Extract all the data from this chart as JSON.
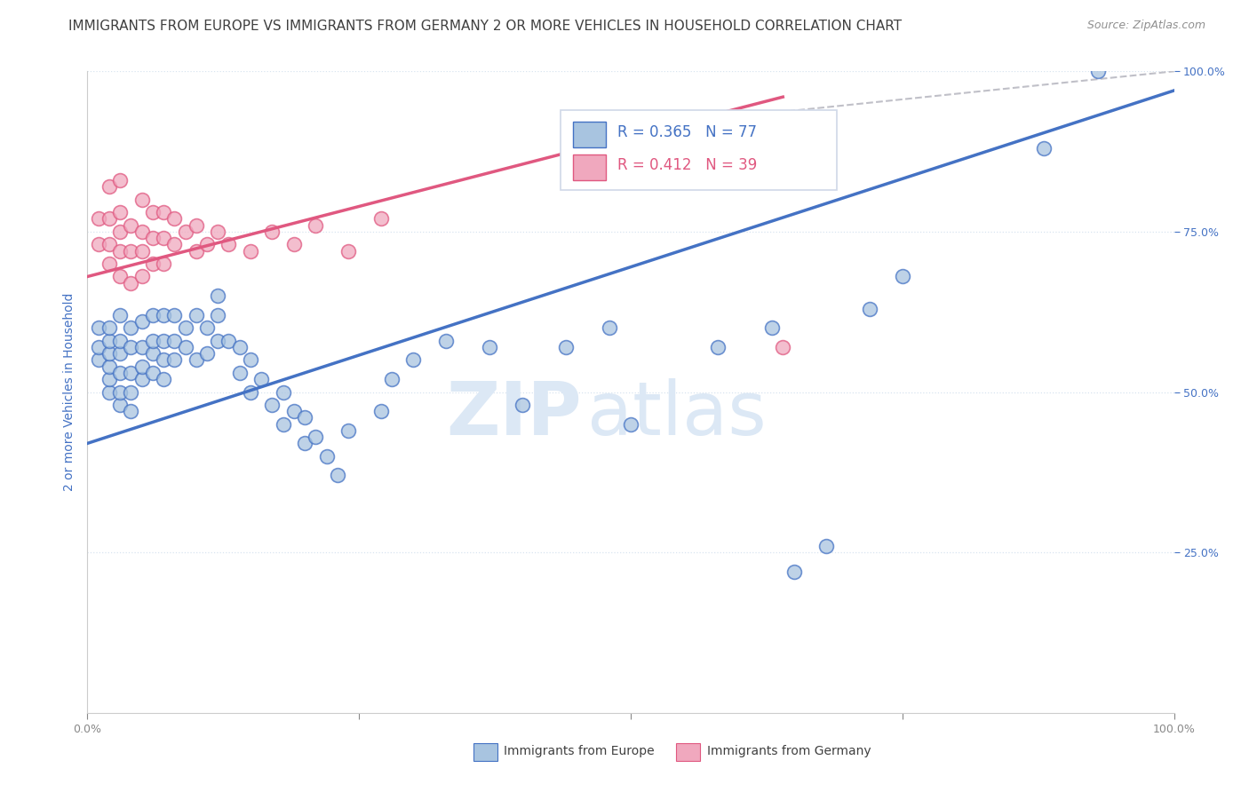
{
  "title": "IMMIGRANTS FROM EUROPE VS IMMIGRANTS FROM GERMANY 2 OR MORE VEHICLES IN HOUSEHOLD CORRELATION CHART",
  "source": "Source: ZipAtlas.com",
  "ylabel_axis": "2 or more Vehicles in Household",
  "legend_blue_label": "Immigrants from Europe",
  "legend_pink_label": "Immigrants from Germany",
  "r_blue": 0.365,
  "n_blue": 77,
  "r_pink": 0.412,
  "n_pink": 39,
  "color_blue": "#a8c4e0",
  "color_pink": "#f0a8be",
  "line_blue": "#4472c4",
  "line_pink": "#e05880",
  "line_dashed_color": "#c0c0c8",
  "background_color": "#ffffff",
  "grid_color": "#d8e4f0",
  "title_color": "#404040",
  "axis_label_color": "#4472c4",
  "watermark_color": "#dce8f5",
  "blue_trend": [
    0.0,
    1.0,
    0.42,
    0.97
  ],
  "pink_trend": [
    0.0,
    0.64,
    0.68,
    0.96
  ],
  "pink_dash": [
    0.6,
    1.0,
    0.93,
    1.08
  ],
  "blue_x": [
    0.01,
    0.01,
    0.01,
    0.02,
    0.02,
    0.02,
    0.02,
    0.02,
    0.02,
    0.03,
    0.03,
    0.03,
    0.03,
    0.03,
    0.03,
    0.04,
    0.04,
    0.04,
    0.04,
    0.04,
    0.05,
    0.05,
    0.05,
    0.05,
    0.06,
    0.06,
    0.06,
    0.06,
    0.07,
    0.07,
    0.07,
    0.07,
    0.08,
    0.08,
    0.08,
    0.09,
    0.09,
    0.1,
    0.1,
    0.11,
    0.11,
    0.12,
    0.12,
    0.12,
    0.13,
    0.14,
    0.14,
    0.15,
    0.15,
    0.16,
    0.17,
    0.18,
    0.18,
    0.19,
    0.2,
    0.2,
    0.21,
    0.22,
    0.23,
    0.24,
    0.27,
    0.28,
    0.3,
    0.33,
    0.37,
    0.4,
    0.44,
    0.48,
    0.5,
    0.58,
    0.63,
    0.65,
    0.68,
    0.72,
    0.75,
    0.88,
    0.93
  ],
  "blue_y": [
    0.55,
    0.57,
    0.6,
    0.5,
    0.52,
    0.54,
    0.56,
    0.58,
    0.6,
    0.48,
    0.5,
    0.53,
    0.56,
    0.58,
    0.62,
    0.47,
    0.5,
    0.53,
    0.57,
    0.6,
    0.52,
    0.54,
    0.57,
    0.61,
    0.53,
    0.56,
    0.58,
    0.62,
    0.52,
    0.55,
    0.58,
    0.62,
    0.55,
    0.58,
    0.62,
    0.57,
    0.6,
    0.55,
    0.62,
    0.56,
    0.6,
    0.58,
    0.62,
    0.65,
    0.58,
    0.53,
    0.57,
    0.5,
    0.55,
    0.52,
    0.48,
    0.45,
    0.5,
    0.47,
    0.42,
    0.46,
    0.43,
    0.4,
    0.37,
    0.44,
    0.47,
    0.52,
    0.55,
    0.58,
    0.57,
    0.48,
    0.57,
    0.6,
    0.45,
    0.57,
    0.6,
    0.22,
    0.26,
    0.63,
    0.68,
    0.88,
    1.0
  ],
  "pink_x": [
    0.01,
    0.01,
    0.02,
    0.02,
    0.02,
    0.02,
    0.03,
    0.03,
    0.03,
    0.03,
    0.03,
    0.04,
    0.04,
    0.04,
    0.05,
    0.05,
    0.05,
    0.05,
    0.06,
    0.06,
    0.06,
    0.07,
    0.07,
    0.07,
    0.08,
    0.08,
    0.09,
    0.1,
    0.1,
    0.11,
    0.12,
    0.13,
    0.15,
    0.17,
    0.19,
    0.21,
    0.24,
    0.27,
    0.64
  ],
  "pink_y": [
    0.73,
    0.77,
    0.7,
    0.73,
    0.77,
    0.82,
    0.68,
    0.72,
    0.75,
    0.78,
    0.83,
    0.67,
    0.72,
    0.76,
    0.68,
    0.72,
    0.75,
    0.8,
    0.7,
    0.74,
    0.78,
    0.7,
    0.74,
    0.78,
    0.73,
    0.77,
    0.75,
    0.72,
    0.76,
    0.73,
    0.75,
    0.73,
    0.72,
    0.75,
    0.73,
    0.76,
    0.72,
    0.77,
    0.57
  ]
}
